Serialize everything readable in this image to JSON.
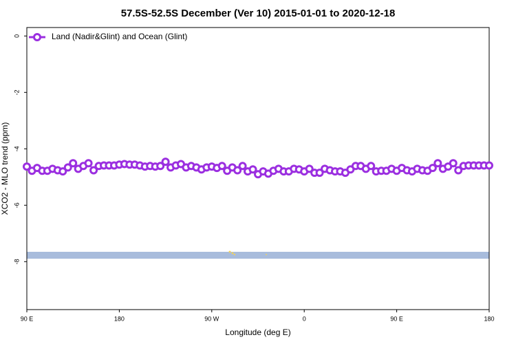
{
  "chart_data": {
    "type": "line",
    "title": "57.5S-52.5S December (Ver 10)   2015-01-01 to 2020-12-18",
    "x_label": "Longitude (deg E)",
    "y_label": "XCO2 - MLO trend (ppm)",
    "legend": "top-left",
    "xlim": [
      90,
      540
    ],
    "ylim": [
      -9.7,
      0.3
    ],
    "xticks": [
      {
        "value": 90,
        "label": "90 E"
      },
      {
        "value": 180,
        "label": "180"
      },
      {
        "value": 270,
        "label": "90 W"
      },
      {
        "value": 360,
        "label": "0"
      },
      {
        "value": 450,
        "label": "90 E"
      },
      {
        "value": 540,
        "label": "180"
      }
    ],
    "yticks": [
      0,
      -2,
      -4,
      -6,
      -8
    ],
    "x": [
      90,
      95,
      100,
      105,
      110,
      115,
      120,
      125,
      130,
      135,
      140,
      145,
      150,
      155,
      160,
      165,
      170,
      175,
      180,
      185,
      190,
      195,
      200,
      205,
      210,
      215,
      220,
      225,
      230,
      235,
      240,
      245,
      250,
      255,
      260,
      265,
      270,
      275,
      280,
      285,
      290,
      295,
      300,
      305,
      310,
      315,
      320,
      325,
      330,
      335,
      340,
      345,
      350,
      355,
      360,
      365,
      370,
      375,
      380,
      385,
      390,
      395,
      400,
      405,
      410,
      415,
      420,
      425,
      430,
      435,
      440,
      445,
      450,
      455,
      460,
      465,
      470,
      475,
      480,
      485,
      490,
      495,
      500,
      505,
      510,
      515,
      520,
      525,
      530,
      535,
      540
    ],
    "series": [
      {
        "name": "Land (Nadir&Glint) and Ocean (Glint)",
        "color": "#9b2fe0",
        "values": [
          -4.63,
          -4.78,
          -4.68,
          -4.78,
          -4.78,
          -4.71,
          -4.76,
          -4.8,
          -4.66,
          -4.51,
          -4.71,
          -4.61,
          -4.51,
          -4.76,
          -4.61,
          -4.59,
          -4.59,
          -4.59,
          -4.56,
          -4.54,
          -4.56,
          -4.56,
          -4.59,
          -4.63,
          -4.61,
          -4.63,
          -4.61,
          -4.46,
          -4.66,
          -4.59,
          -4.54,
          -4.66,
          -4.61,
          -4.66,
          -4.73,
          -4.66,
          -4.63,
          -4.68,
          -4.61,
          -4.78,
          -4.66,
          -4.76,
          -4.61,
          -4.8,
          -4.73,
          -4.9,
          -4.8,
          -4.88,
          -4.78,
          -4.71,
          -4.8,
          -4.8,
          -4.71,
          -4.73,
          -4.8,
          -4.71,
          -4.85,
          -4.85,
          -4.71,
          -4.76,
          -4.8,
          -4.8,
          -4.85,
          -4.73,
          -4.61,
          -4.61,
          -4.71,
          -4.61,
          -4.8,
          -4.78,
          -4.78,
          -4.71,
          -4.78,
          -4.68,
          -4.76,
          -4.8,
          -4.71,
          -4.76,
          -4.78,
          -4.68,
          -4.51,
          -4.71,
          -4.63,
          -4.51,
          -4.76,
          -4.61,
          -4.59,
          -4.59,
          -4.59,
          -4.59,
          -4.59
        ]
      }
    ]
  }
}
